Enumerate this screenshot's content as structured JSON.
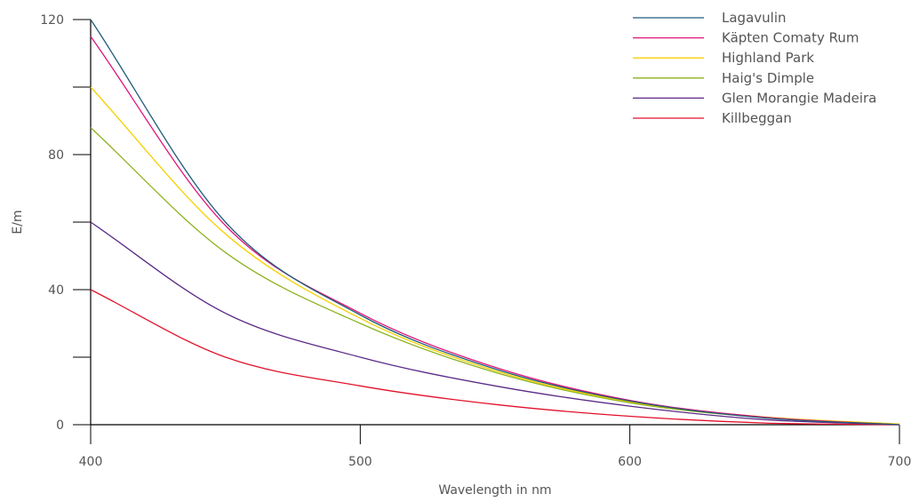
{
  "chart_data": {
    "type": "line",
    "xlabel": "Wavelength in nm",
    "ylabel": "E/m",
    "xlim": [
      400,
      700
    ],
    "ylim": [
      0,
      120
    ],
    "x_ticks": [
      400,
      500,
      600,
      700
    ],
    "y_ticks": [
      0,
      20,
      40,
      60,
      80,
      100,
      120
    ],
    "y_tick_labels": [
      {
        "value": 0,
        "label": "0"
      },
      {
        "value": 40,
        "label": "40"
      },
      {
        "value": 80,
        "label": "80"
      },
      {
        "value": 120,
        "label": "120"
      }
    ],
    "x": [
      400,
      450,
      500,
      550,
      600,
      650,
      700
    ],
    "series": [
      {
        "name": "Lagavulin",
        "color": "#1f5c7a",
        "values": [
          120,
          60,
          32.5,
          16.5,
          7,
          2,
          0
        ]
      },
      {
        "name": "Käpten Comaty Rum",
        "color": "#e0157a",
        "values": [
          115,
          59,
          33,
          17,
          7.2,
          2.2,
          0
        ]
      },
      {
        "name": "Highland Park",
        "color": "#f5d000",
        "values": [
          100,
          56.5,
          31.5,
          16,
          6.8,
          2.3,
          0.2
        ]
      },
      {
        "name": "Haig's Dimple",
        "color": "#8db31f",
        "values": [
          88,
          51,
          30,
          15.5,
          6.5,
          2.1,
          0.1
        ]
      },
      {
        "name": "Glen Morangie Madeira",
        "color": "#5b2a86",
        "values": [
          60,
          33,
          20,
          11.5,
          5.5,
          1.5,
          0
        ]
      },
      {
        "name": "Killbeggan",
        "color": "#e2102a",
        "values": [
          40,
          20,
          11.5,
          6,
          2.5,
          0.5,
          0
        ]
      }
    ],
    "legend_position": "top-right",
    "grid": false
  }
}
